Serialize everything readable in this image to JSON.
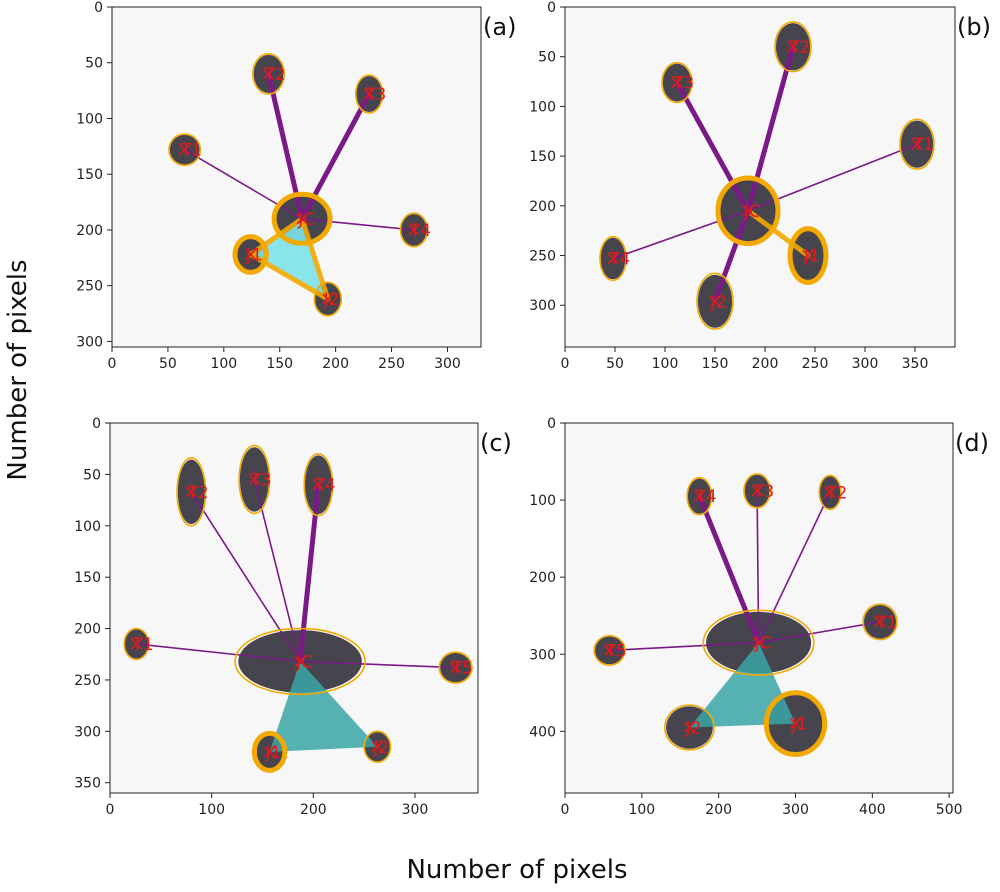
{
  "figure": {
    "xlabel": "Number of pixels",
    "ylabel": "Number of pixels"
  },
  "colors": {
    "thick_line": "#7a1a86",
    "thin_line": "#7a1a86",
    "ellipse": "#f2a900",
    "triangle_light": "#7fe3ea",
    "triangle_dark": "#3aa6a6",
    "marker": "#e01b1b",
    "blob": "#2e2b36",
    "background": "#f7f7f7"
  },
  "chart_data": [
    {
      "panel": "(a)",
      "type": "scatter",
      "xlim": [
        0,
        330
      ],
      "ylim": [
        305,
        0
      ],
      "xticks": [
        0,
        50,
        100,
        150,
        200,
        250,
        300
      ],
      "yticks": [
        0,
        50,
        100,
        150,
        200,
        250,
        300
      ],
      "triangle_color": "light",
      "center": {
        "label": "JC",
        "x": 170,
        "y": 190,
        "rx": 25,
        "ry": 22
      },
      "points": [
        {
          "label": "T1",
          "x": 65,
          "y": 128,
          "rx": 14,
          "ry": 14,
          "link": "thin"
        },
        {
          "label": "T2",
          "x": 140,
          "y": 60,
          "rx": 14,
          "ry": 18,
          "link": "thick"
        },
        {
          "label": "T3",
          "x": 230,
          "y": 78,
          "rx": 12,
          "ry": 17,
          "link": "thick"
        },
        {
          "label": "T4",
          "x": 270,
          "y": 200,
          "rx": 12,
          "ry": 15,
          "link": "thin"
        },
        {
          "label": "J1",
          "x": 124,
          "y": 222,
          "rx": 14,
          "ry": 16,
          "link": "triangle",
          "bold": true
        },
        {
          "label": "J2",
          "x": 193,
          "y": 262,
          "rx": 12,
          "ry": 15,
          "link": "triangle"
        }
      ]
    },
    {
      "panel": "(b)",
      "type": "scatter",
      "xlim": [
        0,
        390
      ],
      "ylim": [
        342,
        0
      ],
      "xticks": [
        0,
        50,
        100,
        150,
        200,
        250,
        300,
        350
      ],
      "yticks": [
        0,
        50,
        100,
        150,
        200,
        250,
        300
      ],
      "triangle_color": "light",
      "center": {
        "label": "JC",
        "x": 183,
        "y": 205,
        "rx": 30,
        "ry": 33
      },
      "points": [
        {
          "label": "T1",
          "x": 352,
          "y": 138,
          "rx": 17,
          "ry": 25,
          "link": "thin"
        },
        {
          "label": "T2",
          "x": 228,
          "y": 40,
          "rx": 18,
          "ry": 25,
          "link": "thick"
        },
        {
          "label": "T3",
          "x": 112,
          "y": 76,
          "rx": 15,
          "ry": 20,
          "link": "thick"
        },
        {
          "label": "T4",
          "x": 48,
          "y": 253,
          "rx": 13,
          "ry": 22,
          "link": "thin"
        },
        {
          "label": "J1",
          "x": 243,
          "y": 250,
          "rx": 18,
          "ry": 27,
          "link": "triangle",
          "bold": true
        },
        {
          "label": "J2",
          "x": 150,
          "y": 296,
          "rx": 18,
          "ry": 28,
          "link": "thick"
        }
      ]
    },
    {
      "panel": "(c)",
      "type": "scatter",
      "xlim": [
        0,
        362
      ],
      "ylim": [
        360,
        0
      ],
      "xticks": [
        0,
        100,
        200,
        300
      ],
      "yticks": [
        0,
        50,
        100,
        150,
        200,
        250,
        300,
        350
      ],
      "triangle_color": "dark",
      "center": {
        "label": "JC",
        "x": 187,
        "y": 232,
        "rx": 64,
        "ry": 32
      },
      "points": [
        {
          "label": "T1",
          "x": 26,
          "y": 215,
          "rx": 12,
          "ry": 15,
          "link": "thin"
        },
        {
          "label": "T2",
          "x": 80,
          "y": 67,
          "rx": 14,
          "ry": 33,
          "link": "thin"
        },
        {
          "label": "T3",
          "x": 142,
          "y": 55,
          "rx": 15,
          "ry": 33,
          "link": "thin"
        },
        {
          "label": "T4",
          "x": 205,
          "y": 60,
          "rx": 14,
          "ry": 30,
          "link": "thick"
        },
        {
          "label": "T5",
          "x": 340,
          "y": 238,
          "rx": 16,
          "ry": 15,
          "link": "thin"
        },
        {
          "label": "J1",
          "x": 157,
          "y": 320,
          "rx": 15,
          "ry": 18,
          "link": "triangle",
          "bold": true
        },
        {
          "label": "J2",
          "x": 263,
          "y": 315,
          "rx": 13,
          "ry": 15,
          "link": "triangle"
        }
      ]
    },
    {
      "panel": "(d)",
      "type": "scatter",
      "xlim": [
        0,
        505
      ],
      "ylim": [
        480,
        0
      ],
      "xticks": [
        0,
        100,
        200,
        300,
        400,
        500
      ],
      "yticks": [
        0,
        100,
        200,
        300,
        400
      ],
      "triangle_color": "dark",
      "center": {
        "label": "JC",
        "x": 252,
        "y": 285,
        "rx": 72,
        "ry": 42
      },
      "points": [
        {
          "label": "T1",
          "x": 410,
          "y": 258,
          "rx": 22,
          "ry": 23,
          "link": "thin"
        },
        {
          "label": "T2",
          "x": 345,
          "y": 90,
          "rx": 14,
          "ry": 22,
          "link": "thin"
        },
        {
          "label": "T3",
          "x": 250,
          "y": 88,
          "rx": 17,
          "ry": 22,
          "link": "thin"
        },
        {
          "label": "T4",
          "x": 175,
          "y": 95,
          "rx": 16,
          "ry": 24,
          "link": "thick"
        },
        {
          "label": "T5",
          "x": 58,
          "y": 295,
          "rx": 20,
          "ry": 19,
          "link": "thin"
        },
        {
          "label": "J1",
          "x": 300,
          "y": 390,
          "rx": 38,
          "ry": 40,
          "link": "triangle",
          "bold": true
        },
        {
          "label": "J2",
          "x": 162,
          "y": 395,
          "rx": 32,
          "ry": 29,
          "link": "triangle"
        }
      ]
    }
  ]
}
